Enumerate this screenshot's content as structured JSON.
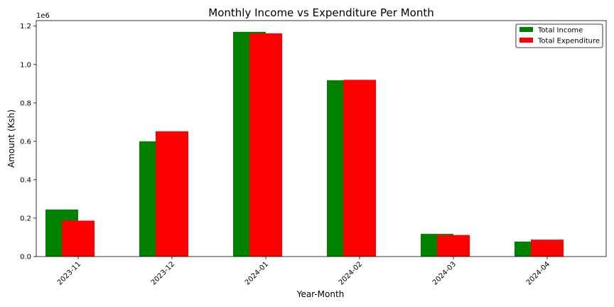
{
  "chart_data": {
    "type": "bar",
    "title": "Monthly Income vs Expenditure Per Month",
    "xlabel": "Year-Month",
    "ylabel": "Amount (Ksh)",
    "y_offset_label": "1e6",
    "ylim": [
      0,
      1228500
    ],
    "y_ticks": [
      0,
      200000,
      400000,
      600000,
      800000,
      1000000,
      1200000
    ],
    "y_tick_labels": [
      "0.0",
      "0.2",
      "0.4",
      "0.6",
      "0.8",
      "1.0",
      "1.2"
    ],
    "categories": [
      "2023-11",
      "2023-12",
      "2024-01",
      "2024-02",
      "2024-03",
      "2024-04"
    ],
    "series": [
      {
        "name": "Total Income",
        "color": "#008000",
        "values": [
          245000,
          600000,
          1170000,
          918000,
          118000,
          78000
        ]
      },
      {
        "name": "Total Expenditure",
        "color": "#ff0000",
        "values": [
          187000,
          652000,
          1162000,
          920000,
          112000,
          88000
        ]
      }
    ],
    "legend_position": "top-right",
    "grid": false
  }
}
